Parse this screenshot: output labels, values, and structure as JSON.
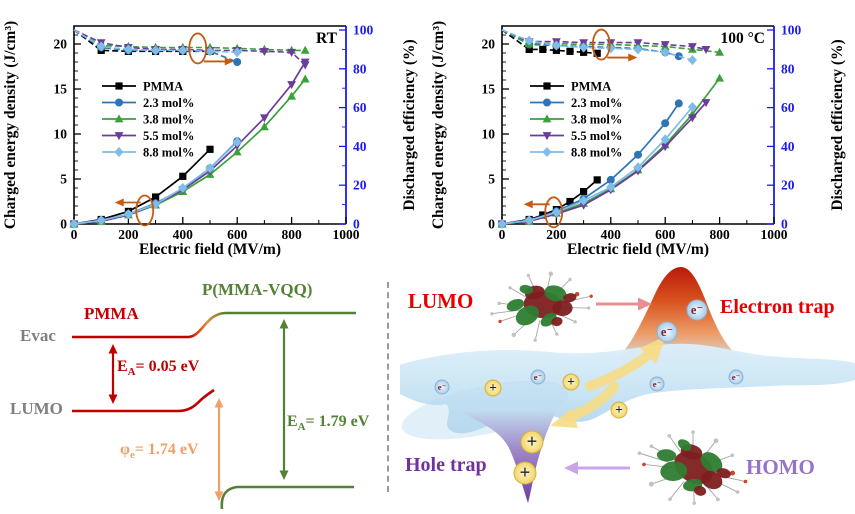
{
  "chart_data": [
    {
      "type": "line",
      "title_corner": "RT",
      "xlabel": "Electric field (MV/m)",
      "ylabel_left": "Charged energy density (J/cm³)",
      "ylabel_right": "Discharged efficiency (%)",
      "xlim": [
        0,
        1000
      ],
      "ylim_left": [
        0,
        22
      ],
      "ylim_right": [
        0,
        100
      ],
      "x_ticks": [
        0,
        200,
        400,
        600,
        800,
        1000
      ],
      "y_ticks_left": [
        0,
        5,
        10,
        15,
        20
      ],
      "y_ticks_right": [
        0,
        20,
        40,
        60,
        80,
        100
      ],
      "grid": false,
      "legend_position": "center-left",
      "axis_color_left": "#000000",
      "axis_color_right": "#1b1bef",
      "annotation_color": "#c55a11",
      "series": [
        {
          "name": "PMMA",
          "marker": "square",
          "color": "#000000",
          "x": [
            0,
            100,
            200,
            300,
            400,
            500
          ],
          "energy_density": [
            0,
            0.5,
            1.4,
            3.0,
            5.3,
            8.3
          ],
          "efficiency": [
            100,
            89.5,
            89,
            89,
            89,
            89
          ]
        },
        {
          "name": "2.3 mol%",
          "marker": "circle",
          "color": "#2e75b6",
          "x": [
            0,
            100,
            200,
            300,
            400,
            500,
            600
          ],
          "energy_density": [
            0,
            0.4,
            1.1,
            2.3,
            3.9,
            6.2,
            9.2
          ],
          "efficiency": [
            100,
            91,
            89.5,
            89.5,
            89.5,
            89,
            83.5
          ]
        },
        {
          "name": "3.8 mol%",
          "marker": "triangle-up",
          "color": "#3aa13a",
          "x": [
            0,
            100,
            200,
            300,
            400,
            500,
            600,
            700,
            800,
            850
          ],
          "energy_density": [
            0,
            0.3,
            1.0,
            2.1,
            3.6,
            5.5,
            8.0,
            10.8,
            14.2,
            16.1
          ],
          "efficiency": [
            100,
            92,
            91.5,
            91,
            91,
            91,
            90.5,
            90,
            89.5,
            89.5
          ]
        },
        {
          "name": "5.5 mol%",
          "marker": "triangle-down",
          "color": "#6a3d9a",
          "x": [
            0,
            100,
            200,
            300,
            400,
            500,
            600,
            700,
            800,
            850
          ],
          "energy_density": [
            0,
            0.3,
            1.0,
            2.2,
            3.8,
            5.9,
            8.7,
            11.8,
            15.5,
            18.0
          ],
          "efficiency": [
            100,
            93.5,
            91,
            90,
            90,
            89.5,
            89.5,
            89,
            88.5,
            82
          ]
        },
        {
          "name": "8.8 mol%",
          "marker": "diamond",
          "color": "#7fbde8",
          "x": [
            0,
            100,
            200,
            300,
            400,
            500,
            600
          ],
          "energy_density": [
            0,
            0.4,
            1.1,
            2.2,
            4.0,
            6.2,
            9.1
          ],
          "efficiency": [
            100,
            91.5,
            90,
            89.5,
            89.5,
            89,
            88.5
          ]
        }
      ],
      "annotations": [
        {
          "x": 455,
          "value": 90.5,
          "axis": "right",
          "arrow": "right"
        },
        {
          "x": 260,
          "value": 1.5,
          "axis": "left",
          "arrow": "left"
        }
      ]
    },
    {
      "type": "line",
      "title_corner": "100 °C",
      "xlabel": "Electric field (MV/m)",
      "ylabel_left": "Charged energy density (J/cm³)",
      "ylabel_right": "Discharged efficiency (%)",
      "xlim": [
        0,
        1000
      ],
      "ylim_left": [
        0,
        22
      ],
      "ylim_right": [
        0,
        100
      ],
      "x_ticks": [
        0,
        200,
        400,
        600,
        800,
        1000
      ],
      "y_ticks_left": [
        0,
        5,
        10,
        15,
        20
      ],
      "y_ticks_right": [
        0,
        20,
        40,
        60,
        80,
        100
      ],
      "grid": false,
      "legend_position": "center-left",
      "axis_color_left": "#000000",
      "axis_color_right": "#1b1bef",
      "annotation_color": "#c55a11",
      "series": [
        {
          "name": "PMMA",
          "marker": "square",
          "color": "#000000",
          "x": [
            0,
            100,
            150,
            200,
            250,
            300,
            350
          ],
          "energy_density": [
            0,
            0.5,
            1.0,
            1.6,
            2.5,
            3.6,
            4.9
          ],
          "efficiency": [
            100,
            90,
            90,
            89.5,
            89,
            88.5,
            88
          ]
        },
        {
          "name": "2.3 mol%",
          "marker": "circle",
          "color": "#2e75b6",
          "x": [
            0,
            100,
            200,
            300,
            400,
            500,
            600,
            650
          ],
          "energy_density": [
            0,
            0.4,
            1.4,
            2.8,
            4.9,
            7.7,
            11.2,
            13.4
          ],
          "efficiency": [
            100,
            92.5,
            92,
            91.5,
            91,
            90.5,
            88.5,
            86.5
          ]
        },
        {
          "name": "3.8 mol%",
          "marker": "triangle-up",
          "color": "#3aa13a",
          "x": [
            0,
            100,
            200,
            300,
            400,
            500,
            600,
            700,
            800
          ],
          "energy_density": [
            0,
            0.3,
            1.2,
            2.3,
            3.9,
            6.0,
            8.8,
            12.2,
            16.2
          ],
          "efficiency": [
            100,
            93,
            93,
            92.5,
            92.5,
            92,
            91.5,
            90,
            88.5
          ]
        },
        {
          "name": "5.5 mol%",
          "marker": "triangle-down",
          "color": "#6a3d9a",
          "x": [
            0,
            100,
            200,
            300,
            400,
            500,
            600,
            700,
            750
          ],
          "energy_density": [
            0,
            0.3,
            1.1,
            2.1,
            3.8,
            5.9,
            8.6,
            11.8,
            13.5
          ],
          "efficiency": [
            100,
            94,
            94,
            93.5,
            93.5,
            93.5,
            92.5,
            91.5,
            90
          ]
        },
        {
          "name": "8.8 mol%",
          "marker": "diamond",
          "color": "#7fbde8",
          "x": [
            0,
            100,
            200,
            300,
            400,
            500,
            600,
            700
          ],
          "energy_density": [
            0,
            0.4,
            1.3,
            2.6,
            4.1,
            6.3,
            9.4,
            13.0
          ],
          "efficiency": [
            100,
            94.5,
            92,
            91,
            90.5,
            90,
            88.5,
            84.5
          ]
        }
      ],
      "annotations": [
        {
          "x": 365,
          "value": 92.5,
          "axis": "right",
          "arrow": "right"
        },
        {
          "x": 190,
          "value": 1.3,
          "axis": "left",
          "arrow": "left"
        }
      ]
    }
  ],
  "band_diagram": {
    "evac_label": "Evac",
    "lumo_label": "LUMO",
    "pmma_label": "PMMA",
    "vqq_label": "P(MMA-VQQ)",
    "ea_pmma": {
      "base": "E",
      "sub": "A",
      "rest": "= 0.05 eV"
    },
    "ea_vqq": {
      "base": "E",
      "sub": "A",
      "rest": "= 1.79 eV"
    },
    "phi": {
      "base": "φ",
      "sub": "e",
      "rest": "= 1.74 eV"
    },
    "colors": {
      "pmma_red": "#c00000",
      "vqq_green": "#538135",
      "phi_orange": "#f0a066",
      "label_gray": "#7f7f7f"
    }
  },
  "trap_diagram": {
    "lumo_label": "LUMO",
    "homo_label": "HOMO",
    "electron_trap_label": "Electron trap",
    "hole_trap_label": "Hole trap",
    "electron_symbol": "e⁻",
    "hole_symbol": "+",
    "colors": {
      "lumo_red": "#e60000",
      "electron_trap_red": "#e60000",
      "hole_purple": "#7030a0",
      "homo_purple": "#9673c9"
    }
  }
}
